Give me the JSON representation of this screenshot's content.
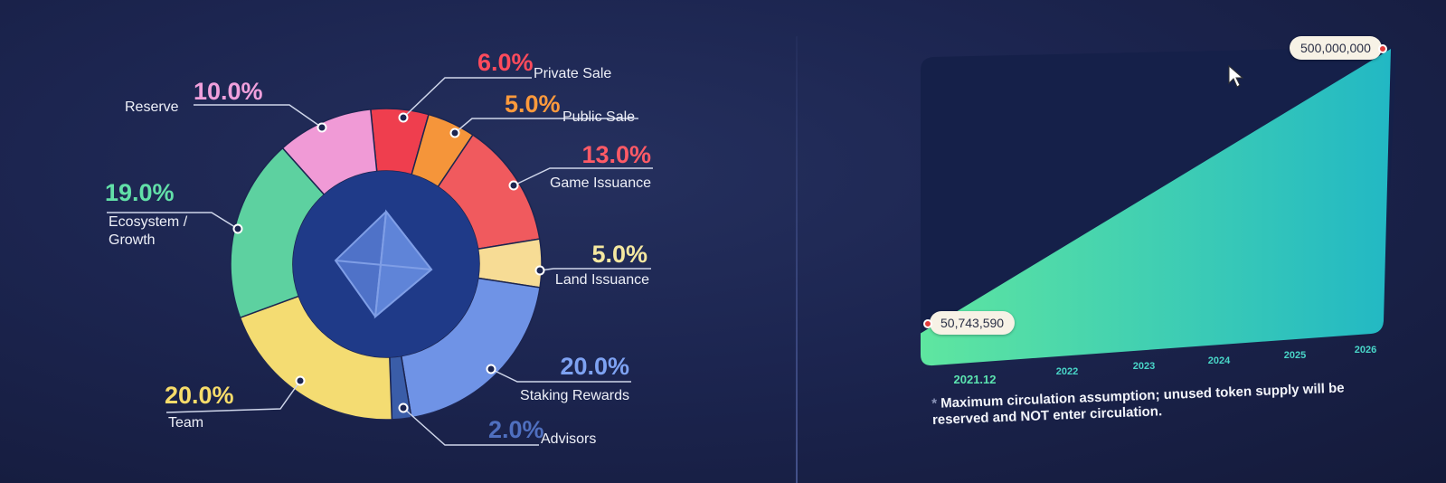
{
  "chart_data": [
    {
      "type": "pie",
      "donut": true,
      "slices": [
        {
          "name": "Private Sale",
          "label": "6.0%",
          "value": 6.0,
          "color": "#ef3e4e",
          "label_color": "#ff4b5c"
        },
        {
          "name": "Public Sale",
          "label": "5.0%",
          "value": 5.0,
          "color": "#f5953a",
          "label_color": "#ff9a3c"
        },
        {
          "name": "Game Issuance",
          "label": "13.0%",
          "value": 13.0,
          "color": "#f05a5e",
          "label_color": "#ff5a66"
        },
        {
          "name": "Land Issuance",
          "label": "5.0%",
          "value": 5.0,
          "color": "#f7dc95",
          "label_color": "#f5e8a0"
        },
        {
          "name": "Staking Rewards",
          "label": "20.0%",
          "value": 20.0,
          "color": "#6f93e6",
          "label_color": "#7ea2f2"
        },
        {
          "name": "Advisors",
          "label": "2.0%",
          "value": 2.0,
          "color": "#3a5da8",
          "label_color": "#4f6fbf"
        },
        {
          "name": "Team",
          "label": "20.0%",
          "value": 20.0,
          "color": "#f4dc72",
          "label_color": "#f7dc6a"
        },
        {
          "name": "Ecosystem / Growth",
          "label": "19.0%",
          "value": 19.0,
          "color": "#5dd1a0",
          "label_color": "#62e0a8"
        },
        {
          "name": "Reserve",
          "label": "10.0%",
          "value": 10.0,
          "color": "#f09ad6",
          "label_color": "#f0a0dc"
        }
      ],
      "center_icon": "octahedron-logo-icon"
    },
    {
      "type": "area",
      "x": [
        "2021.12",
        "2022",
        "2023",
        "2024",
        "2025",
        "2026"
      ],
      "start": {
        "x": "2021.12",
        "y": 50743590,
        "label": "50,743,590"
      },
      "end": {
        "x": "2026",
        "y": 500000000,
        "label": "500,000,000"
      },
      "gradient": [
        "#5fe6a0",
        "#22b8c4"
      ],
      "x_label_colors": {
        "first": "#5be4b0",
        "rest": "#49d6c8"
      },
      "footnote_marker": "*",
      "footnote": "Maximum circulation assumption; unused token supply will be reserved and NOT enter circulation."
    }
  ]
}
